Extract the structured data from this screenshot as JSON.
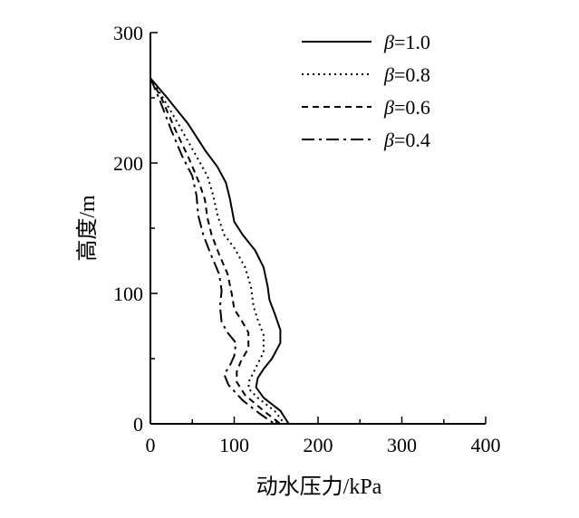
{
  "chart_data": {
    "type": "line",
    "xlabel": "动水压力/kPa",
    "ylabel": "高度/m",
    "xlim": [
      0,
      400
    ],
    "ylim": [
      0,
      300
    ],
    "xticks": [
      0,
      100,
      200,
      300,
      400
    ],
    "yticks": [
      0,
      100,
      200,
      300
    ],
    "grid": false,
    "legend_position": "top-right",
    "legend_symbol": "β",
    "series": [
      {
        "name": "β=1.0",
        "label_value": "=1.0",
        "dash": "solid",
        "points": [
          [
            0,
            265
          ],
          [
            20,
            250
          ],
          [
            45,
            230
          ],
          [
            65,
            210
          ],
          [
            80,
            197
          ],
          [
            90,
            185
          ],
          [
            95,
            172
          ],
          [
            100,
            155
          ],
          [
            110,
            145
          ],
          [
            125,
            133
          ],
          [
            135,
            120
          ],
          [
            140,
            105
          ],
          [
            142,
            95
          ],
          [
            148,
            85
          ],
          [
            155,
            72
          ],
          [
            155,
            62
          ],
          [
            145,
            50
          ],
          [
            135,
            42
          ],
          [
            128,
            35
          ],
          [
            126,
            28
          ],
          [
            135,
            20
          ],
          [
            155,
            10
          ],
          [
            165,
            0
          ]
        ]
      },
      {
        "name": "β=0.8",
        "label_value": "=0.8",
        "dash": "dotted",
        "points": [
          [
            0,
            265
          ],
          [
            15,
            250
          ],
          [
            35,
            228
          ],
          [
            55,
            205
          ],
          [
            68,
            190
          ],
          [
            75,
            175
          ],
          [
            80,
            160
          ],
          [
            88,
            145
          ],
          [
            100,
            135
          ],
          [
            113,
            120
          ],
          [
            120,
            105
          ],
          [
            123,
            90
          ],
          [
            128,
            80
          ],
          [
            135,
            68
          ],
          [
            135,
            55
          ],
          [
            125,
            42
          ],
          [
            118,
            33
          ],
          [
            117,
            27
          ],
          [
            128,
            20
          ],
          [
            148,
            10
          ],
          [
            160,
            0
          ]
        ]
      },
      {
        "name": "β=0.6",
        "label_value": "=0.6",
        "dash": "dashed",
        "points": [
          [
            0,
            265
          ],
          [
            13,
            250
          ],
          [
            30,
            225
          ],
          [
            45,
            205
          ],
          [
            58,
            185
          ],
          [
            65,
            172
          ],
          [
            68,
            158
          ],
          [
            73,
            145
          ],
          [
            82,
            130
          ],
          [
            92,
            115
          ],
          [
            97,
            100
          ],
          [
            100,
            88
          ],
          [
            108,
            80
          ],
          [
            117,
            70
          ],
          [
            117,
            58
          ],
          [
            108,
            48
          ],
          [
            103,
            40
          ],
          [
            103,
            32
          ],
          [
            113,
            22
          ],
          [
            135,
            10
          ],
          [
            155,
            0
          ]
        ]
      },
      {
        "name": "β=0.4",
        "label_value": "=0.4",
        "dash": "dashdot",
        "points": [
          [
            0,
            265
          ],
          [
            10,
            250
          ],
          [
            25,
            225
          ],
          [
            38,
            205
          ],
          [
            50,
            190
          ],
          [
            55,
            175
          ],
          [
            57,
            160
          ],
          [
            63,
            145
          ],
          [
            72,
            130
          ],
          [
            82,
            115
          ],
          [
            85,
            102
          ],
          [
            83,
            90
          ],
          [
            85,
            78
          ],
          [
            92,
            70
          ],
          [
            102,
            62
          ],
          [
            100,
            52
          ],
          [
            95,
            45
          ],
          [
            88,
            38
          ],
          [
            93,
            30
          ],
          [
            110,
            18
          ],
          [
            130,
            8
          ],
          [
            148,
            0
          ]
        ]
      }
    ]
  }
}
